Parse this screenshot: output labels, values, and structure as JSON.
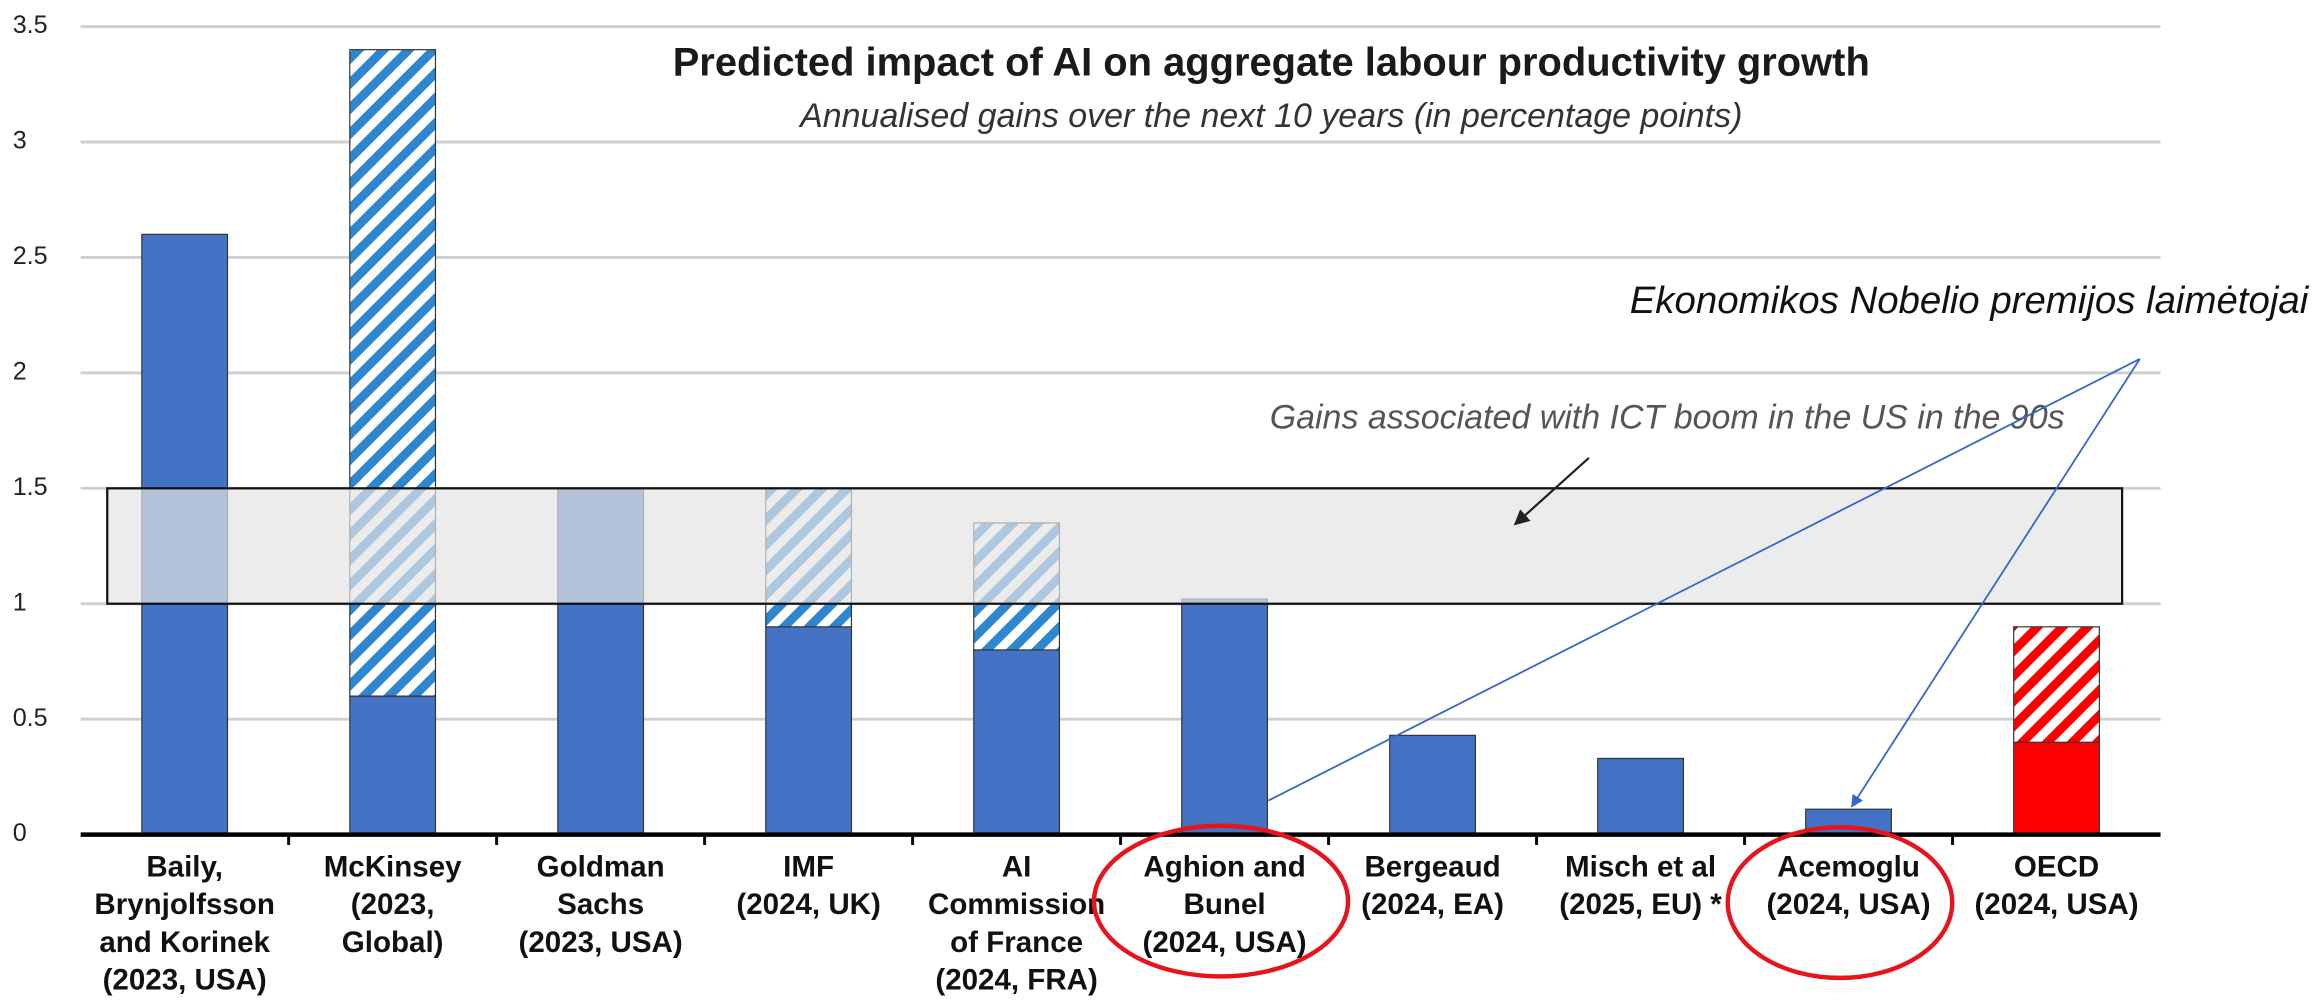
{
  "chart_data": {
    "type": "stacked_bar",
    "title": "Predicted impact of AI on aggregate labour productivity growth",
    "subtitle": "Annualised gains over the next 10 years (in percentage points)",
    "categories": [
      [
        "Baily,",
        "Brynjolfsson",
        "and Korinek",
        "(2023, USA)"
      ],
      [
        "McKinsey",
        "(2023,",
        "Global)"
      ],
      [
        "Goldman",
        "Sachs",
        "(2023, USA)"
      ],
      [
        "IMF",
        "(2024, UK)"
      ],
      [
        "AI",
        "Commission",
        "of France",
        "(2024, FRA)"
      ],
      [
        "Aghion and",
        "Bunel",
        "(2024, USA)"
      ],
      [
        "Bergeaud",
        "(2024, EA)"
      ],
      [
        "Misch et al",
        "(2025, EU) *"
      ],
      [
        "Acemoglu",
        "(2024, USA)"
      ],
      [
        "OECD",
        "(2024, USA)"
      ]
    ],
    "series": [
      {
        "pattern": "solid",
        "values": [
          2.6,
          0.6,
          1.5,
          0.9,
          0.8,
          1.02,
          0.43,
          0.33,
          0.11,
          0.4
        ],
        "colors": [
          "#4472c4",
          "#4472c4",
          "#4472c4",
          "#4472c4",
          "#4472c4",
          "#4472c4",
          "#4472c4",
          "#4472c4",
          "#4472c4",
          "#ff0000"
        ]
      },
      {
        "pattern": "hatch",
        "values": [
          0,
          2.8,
          0,
          0.6,
          0.55,
          0,
          0,
          0,
          0,
          0.5
        ],
        "colors": [
          "#2e86cf",
          "#2e86cf",
          "#2e86cf",
          "#2e86cf",
          "#2e86cf",
          "#2e86cf",
          "#2e86cf",
          "#2e86cf",
          "#2e86cf",
          "#ff0000"
        ]
      }
    ],
    "ylim": [
      0,
      3.5
    ],
    "yticks": [
      0,
      0.5,
      1,
      1.5,
      2,
      2.5,
      3,
      3.5
    ],
    "grid": true,
    "band": {
      "range": [
        1,
        1.5
      ],
      "label": "Gains associated with ICT boom in the US in the 90s"
    },
    "annotation": "Ekonomikos Nobelio premijos laimėtojai"
  }
}
